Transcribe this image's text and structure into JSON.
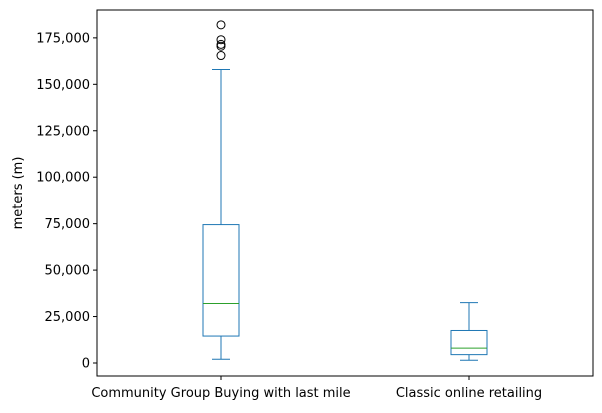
{
  "chart_data": {
    "type": "box",
    "title": "",
    "xlabel": "",
    "ylabel": "meters (m)",
    "ylim": [
      -7000,
      190000
    ],
    "yticks": [
      0,
      25000,
      50000,
      75000,
      100000,
      125000,
      150000,
      175000
    ],
    "ytick_labels": [
      "0",
      "25,000",
      "50,000",
      "75,000",
      "100,000",
      "125,000",
      "150,000",
      "175,000"
    ],
    "categories": [
      "Community Group Buying with last mile",
      "Classic online retailing"
    ],
    "grid": false,
    "colors": {
      "box": "#1f77b4",
      "median": "#2ca02c",
      "outlier": "#000000"
    },
    "boxes": [
      {
        "name": "Community Group Buying with last mile",
        "whisker_low": 2000,
        "q1": 14500,
        "median": 32000,
        "q3": 74500,
        "whisker_high": 158000,
        "outliers": [
          165500,
          170500,
          171500,
          174000,
          182000
        ]
      },
      {
        "name": "Classic online retailing",
        "whisker_low": 1500,
        "q1": 4500,
        "median": 8000,
        "q3": 17500,
        "whisker_high": 32500,
        "outliers": []
      }
    ]
  }
}
